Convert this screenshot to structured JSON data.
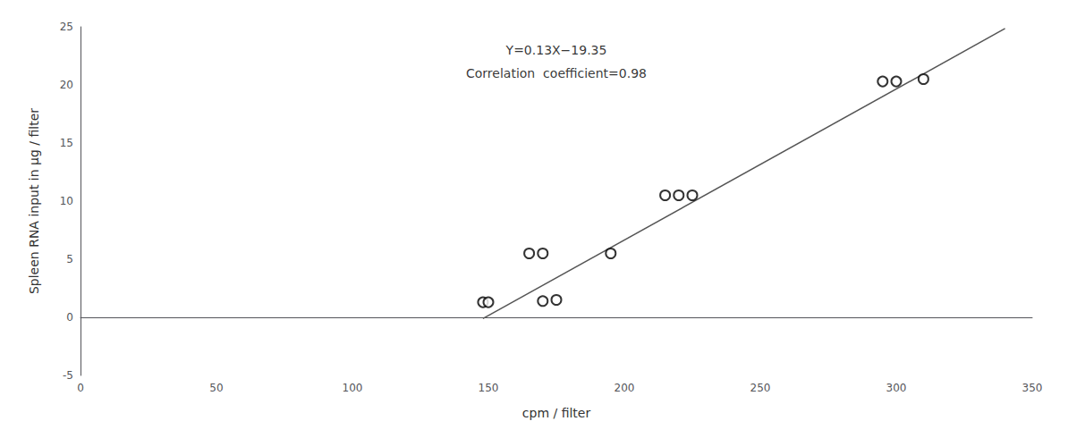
{
  "chart_data": {
    "type": "scatter",
    "x": [
      148,
      150,
      165,
      170,
      170,
      175,
      195,
      215,
      220,
      225,
      295,
      300,
      310
    ],
    "values": [
      1.3,
      1.3,
      5.5,
      5.5,
      1.4,
      1.5,
      5.5,
      10.5,
      10.5,
      10.5,
      20.3,
      20.3,
      20.5
    ],
    "marker": "open_circle",
    "color": "black",
    "regression_line": {
      "x": [
        148,
        340
      ],
      "values": [
        -0.11,
        24.85
      ],
      "color": "#555555",
      "line_style": "solid"
    },
    "annotations": [
      {
        "text": "Y=0.13X−19.35",
        "x": 175,
        "y": 23.0
      },
      {
        "text": "Correlation  coefficient=0.98",
        "x": 175,
        "y": 21.0
      }
    ],
    "xlabel": "cpm / filter",
    "ylabel": "Spleen RNA input in μg / filter",
    "xlim": [
      0,
      350
    ],
    "ylim": [
      -5,
      25
    ],
    "xticks": [
      0,
      50,
      100,
      150,
      200,
      250,
      300,
      350
    ],
    "yticks": [
      -5,
      0,
      5,
      10,
      15,
      20,
      25
    ],
    "grid": false
  }
}
